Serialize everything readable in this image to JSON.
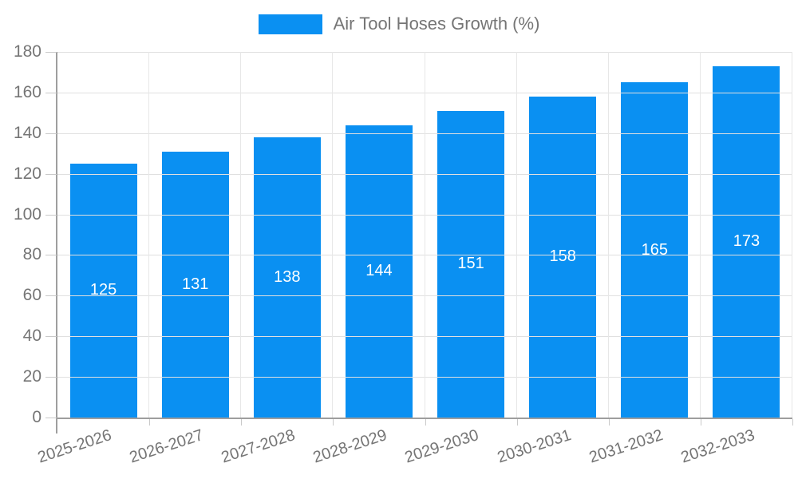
{
  "chart_data": {
    "type": "bar",
    "title": "",
    "legend": "Air Tool Hoses Growth (%)",
    "legend_position": "top-center",
    "categories": [
      "2025-2026",
      "2026-2027",
      "2027-2028",
      "2028-2029",
      "2029-2030",
      "2030-2031",
      "2031-2032",
      "2032-2033"
    ],
    "values": [
      125,
      131,
      138,
      144,
      151,
      158,
      165,
      173
    ],
    "xlabel": "",
    "ylabel": "",
    "ylim": [
      0,
      180
    ],
    "ytick_step": 20,
    "ytick_labels": [
      "0",
      "20",
      "40",
      "60",
      "80",
      "100",
      "120",
      "140",
      "160",
      "180"
    ],
    "grid": "on",
    "bar_label_position": "center-inside",
    "colors": {
      "bar": "#0a90f2",
      "bar_label": "#ffffff",
      "axis_line": "#9e9e9e",
      "gridline": "#e0e0e0",
      "tick_text": "#757575",
      "background": "#ffffff"
    }
  }
}
